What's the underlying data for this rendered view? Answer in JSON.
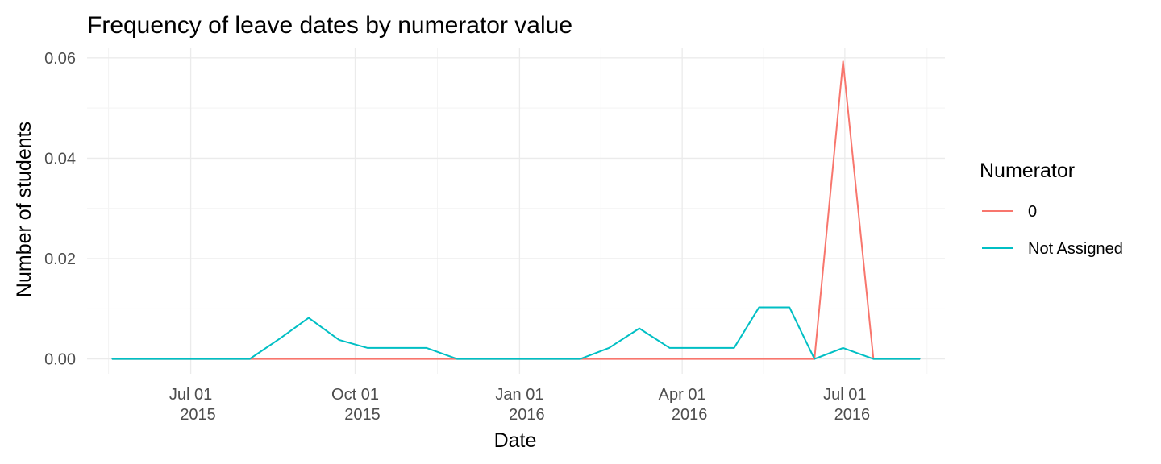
{
  "chart_data": {
    "type": "line",
    "title": "Frequency of leave dates by numerator value",
    "xlabel": "Date",
    "ylabel": "Number of students",
    "x_ticks": [
      {
        "date": "2015-07-01",
        "line1": "Jul 01",
        "line2": "2015"
      },
      {
        "date": "2015-10-01",
        "line1": "Oct 01",
        "line2": "2015"
      },
      {
        "date": "2016-01-01",
        "line1": "Jan 01",
        "line2": "2016"
      },
      {
        "date": "2016-04-01",
        "line1": "Apr 01",
        "line2": "2016"
      },
      {
        "date": "2016-07-01",
        "line1": "Jul 01",
        "line2": "2016"
      }
    ],
    "y_ticks": [
      {
        "value": 0,
        "label": "0.00"
      },
      {
        "value": 0.02,
        "label": "0.02"
      },
      {
        "value": 0.04,
        "label": "0.04"
      },
      {
        "value": 0.06,
        "label": "0.06"
      }
    ],
    "xlim": [
      "2015-05-04",
      "2016-08-26"
    ],
    "ylim": [
      -0.00295,
      0.0619
    ],
    "grid": true,
    "legend": {
      "title": "Numerator",
      "position": "right"
    },
    "series": [
      {
        "name": "0",
        "color": "#F8766D",
        "points": [
          {
            "x": "2015-05-18",
            "y": 0
          },
          {
            "x": "2016-06-14",
            "y": 0
          },
          {
            "x": "2016-06-30",
            "y": 0.0593
          },
          {
            "x": "2016-07-17",
            "y": 0
          },
          {
            "x": "2016-08-12",
            "y": 0
          }
        ]
      },
      {
        "name": "Not Assigned",
        "color": "#00BFC4",
        "points": [
          {
            "x": "2015-05-18",
            "y": 0
          },
          {
            "x": "2015-08-03",
            "y": 0
          },
          {
            "x": "2015-08-20",
            "y": 0.0041
          },
          {
            "x": "2015-09-05",
            "y": 0.0082
          },
          {
            "x": "2015-09-22",
            "y": 0.0038
          },
          {
            "x": "2015-10-08",
            "y": 0.0022
          },
          {
            "x": "2015-11-10",
            "y": 0.0022
          },
          {
            "x": "2015-11-27",
            "y": 0
          },
          {
            "x": "2016-02-04",
            "y": 0
          },
          {
            "x": "2016-02-20",
            "y": 0.0022
          },
          {
            "x": "2016-03-08",
            "y": 0.0061
          },
          {
            "x": "2016-03-25",
            "y": 0.0022
          },
          {
            "x": "2016-04-30",
            "y": 0.0022
          },
          {
            "x": "2016-05-14",
            "y": 0.0103
          },
          {
            "x": "2016-05-31",
            "y": 0.0103
          },
          {
            "x": "2016-06-14",
            "y": 0
          },
          {
            "x": "2016-06-30",
            "y": 0.0022
          },
          {
            "x": "2016-07-17",
            "y": 0
          },
          {
            "x": "2016-08-12",
            "y": 0
          }
        ]
      }
    ]
  }
}
